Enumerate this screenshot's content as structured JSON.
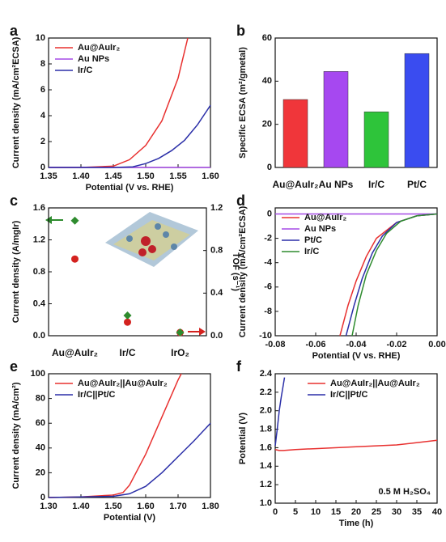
{
  "chart_data": [
    {
      "type": "line",
      "label": "a",
      "xlabel": "Potential (V vs. RHE)",
      "ylabel": "Current density (mA/cm²ECSA)",
      "xlim": [
        1.35,
        1.6
      ],
      "xticks": [
        1.35,
        {
          "value": 1.4,
          "label": "1.40"
        },
        1.45,
        {
          "value": 1.5,
          "label": "1.50"
        },
        1.55,
        {
          "value": 1.6,
          "label": "1.60"
        }
      ],
      "ylim": [
        0,
        10
      ],
      "yticks": [
        0,
        2,
        4,
        6,
        8,
        10
      ],
      "legend": "upper left",
      "series": [
        {
          "name": "Au@AuIr₂",
          "color": "#e8302f",
          "x": [
            1.35,
            1.4,
            1.45,
            1.475,
            1.5,
            1.525,
            1.55,
            1.565
          ],
          "values": [
            0,
            0,
            0.1,
            0.6,
            1.7,
            3.6,
            6.9,
            10
          ]
        },
        {
          "name": "Au NPs",
          "color": "#a64ae6",
          "x": [
            1.35,
            1.6
          ],
          "values": [
            0,
            0
          ]
        },
        {
          "name": "Ir/C",
          "color": "#2b2fa8",
          "x": [
            1.35,
            1.45,
            1.48,
            1.5,
            1.52,
            1.54,
            1.56,
            1.58,
            1.6
          ],
          "values": [
            0,
            0,
            0.05,
            0.3,
            0.7,
            1.3,
            2.1,
            3.3,
            4.8
          ]
        }
      ]
    },
    {
      "type": "bar",
      "label": "b",
      "ylabel": "Specific ECSA (m²/gmetal)",
      "categories": [
        "Au@AuIr₂",
        "Au NPs",
        "Ir/C",
        "Pt/C"
      ],
      "values": [
        31.5,
        44.5,
        25.8,
        52.8
      ],
      "colors": [
        "#f0363a",
        "#a648f0",
        "#2ec43a",
        "#3a4cf0"
      ],
      "ylim": [
        0,
        60
      ],
      "yticks": [
        0,
        20,
        40,
        60
      ]
    },
    {
      "type": "scatter",
      "label": "c",
      "ylabel": "Current density (A/mgIr)",
      "y2label": "TOF (s⁻¹)",
      "categories": [
        "Au@AuIr₂",
        "Ir/C",
        "IrO₂"
      ],
      "ylim": [
        0,
        1.6
      ],
      "yticks": [
        {
          "value": 0,
          "label": "0.0"
        },
        0.4,
        0.8,
        1.2,
        1.6
      ],
      "y2lim": [
        0,
        1.2
      ],
      "y2ticks": [
        {
          "value": 0,
          "label": "0.0"
        },
        0.4,
        0.8,
        1.2
      ],
      "series": [
        {
          "color": "#d4221f",
          "marker": "circle",
          "values": [
            0.96,
            0.17,
            0.04
          ]
        },
        {
          "color": "#2e8b2e",
          "marker": "diamond",
          "axis": "y2",
          "values": [
            1.08,
            0.19,
            0.03
          ]
        }
      ]
    },
    {
      "type": "line",
      "label": "d",
      "xlabel": "Potential (V vs. RHE)",
      "ylabel": "Current density (mA/cm²ECSA)",
      "xlim": [
        -0.08,
        0
      ],
      "xticks": [
        -0.08,
        -0.06,
        -0.04,
        -0.02,
        {
          "value": 0,
          "label": "0.00"
        }
      ],
      "ylim": [
        -10,
        0.5
      ],
      "yticks": [
        -10,
        -8,
        -6,
        -4,
        -2,
        0
      ],
      "legend": "upper left",
      "series": [
        {
          "name": "Au@AuIr₂",
          "color": "#e8302f",
          "x": [
            -0.048,
            -0.044,
            -0.04,
            -0.035,
            -0.03,
            -0.02,
            -0.01,
            0
          ],
          "values": [
            -10,
            -7.5,
            -5.5,
            -3.5,
            -2,
            -0.7,
            -0.15,
            0
          ]
        },
        {
          "name": "Au NPs",
          "color": "#a64ae6",
          "x": [
            -0.08,
            0
          ],
          "values": [
            0,
            0
          ]
        },
        {
          "name": "Pt/C",
          "color": "#2b2fa8",
          "x": [
            -0.045,
            -0.041,
            -0.037,
            -0.032,
            -0.027,
            -0.02,
            -0.01,
            0
          ],
          "values": [
            -10,
            -7.5,
            -5.3,
            -3.2,
            -1.8,
            -0.7,
            -0.15,
            0
          ]
        },
        {
          "name": "Ir/C",
          "color": "#2e8b2e",
          "x": [
            -0.042,
            -0.039,
            -0.035,
            -0.03,
            -0.025,
            -0.018,
            -0.01,
            0
          ],
          "values": [
            -10,
            -7.5,
            -5,
            -3,
            -1.6,
            -0.6,
            -0.15,
            0
          ]
        }
      ]
    },
    {
      "type": "line",
      "label": "e",
      "xlabel": "Potential (V)",
      "ylabel": "Current density (mA/cm²)",
      "xlim": [
        1.3,
        1.8
      ],
      "xticks": [
        {
          "value": 1.3,
          "label": "1.30"
        },
        {
          "value": 1.4,
          "label": "1.40"
        },
        {
          "value": 1.5,
          "label": "1.50"
        },
        {
          "value": 1.6,
          "label": "1.60"
        },
        {
          "value": 1.7,
          "label": "1.70"
        },
        {
          "value": 1.8,
          "label": "1.80"
        }
      ],
      "ylim": [
        0,
        100
      ],
      "yticks": [
        0,
        20,
        40,
        60,
        80,
        100
      ],
      "legend": "upper left",
      "series": [
        {
          "name": "Au@AuIr₂||Au@AuIr₂",
          "color": "#e8302f",
          "x": [
            1.3,
            1.4,
            1.5,
            1.53,
            1.55,
            1.6,
            1.65,
            1.7,
            1.71
          ],
          "values": [
            0,
            0.5,
            2,
            4,
            10,
            35,
            65,
            95,
            100
          ]
        },
        {
          "name": "Ir/C||Pt/C",
          "color": "#2b2fa8",
          "x": [
            1.3,
            1.5,
            1.55,
            1.6,
            1.65,
            1.7,
            1.75,
            1.8
          ],
          "values": [
            0,
            1,
            3,
            9,
            20,
            33,
            46,
            60
          ]
        }
      ]
    },
    {
      "type": "line",
      "label": "f",
      "xlabel": "Time (h)",
      "ylabel": "Potential (V)",
      "annotation": "0.5 M H₂SO₄",
      "xlim": [
        0,
        40
      ],
      "xticks": [
        0,
        5,
        10,
        15,
        20,
        25,
        30,
        35,
        40
      ],
      "ylim": [
        1.0,
        2.4
      ],
      "yticks": [
        {
          "value": 1.0,
          "label": "1.0"
        },
        1.2,
        1.4,
        1.6,
        1.8,
        {
          "value": 2.0,
          "label": "2.0"
        },
        2.2,
        2.4
      ],
      "legend": "upper right",
      "series": [
        {
          "name": "Au@AuIr₂||Au@AuIr₂",
          "color": "#e8302f",
          "x": [
            0,
            1,
            2,
            5,
            10,
            20,
            30,
            40
          ],
          "values": [
            1.58,
            1.57,
            1.57,
            1.58,
            1.59,
            1.61,
            1.63,
            1.68
          ]
        },
        {
          "name": "Ir/C||Pt/C",
          "color": "#2b2fa8",
          "x": [
            0,
            0.5,
            1,
            1.5,
            2,
            2.3
          ],
          "values": [
            1.62,
            1.8,
            2.0,
            2.15,
            2.28,
            2.36
          ]
        }
      ]
    }
  ]
}
